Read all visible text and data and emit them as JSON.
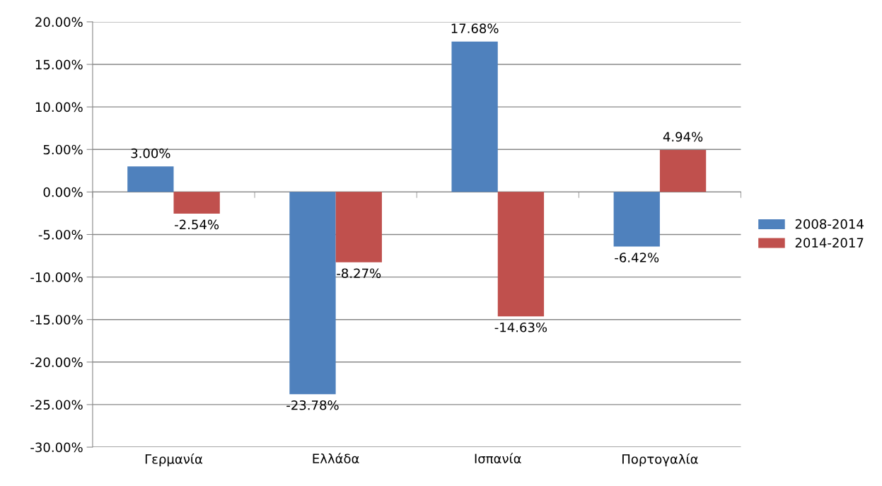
{
  "chart_data": {
    "type": "bar",
    "categories": [
      "Γερμανία",
      "Ελλάδα",
      "Ισπανία",
      "Πορτογαλία"
    ],
    "series": [
      {
        "name": "2008-2014",
        "color": "#4f81bd",
        "values": [
          3.0,
          -23.78,
          17.68,
          -6.42
        ],
        "value_labels": [
          "3.00%",
          "-23.78%",
          "17.68%",
          "-6.42%"
        ]
      },
      {
        "name": "2014-2017",
        "color": "#c0504d",
        "values": [
          -2.54,
          -8.27,
          -14.63,
          4.94
        ],
        "value_labels": [
          "-2.54%",
          "-8.27%",
          "-14.63%",
          "4.94%"
        ]
      }
    ],
    "ylim": [
      -30,
      20
    ],
    "yticks": [
      {
        "value": -30,
        "label": "-30.00%"
      },
      {
        "value": -25,
        "label": "-25.00%"
      },
      {
        "value": -20,
        "label": "-20.00%"
      },
      {
        "value": -15,
        "label": "-15.00%"
      },
      {
        "value": -10,
        "label": "-10.00%"
      },
      {
        "value": -5,
        "label": "-5.00%"
      },
      {
        "value": 0,
        "label": "0.00%"
      },
      {
        "value": 5,
        "label": "5.00%"
      },
      {
        "value": 10,
        "label": "10.00%"
      },
      {
        "value": 15,
        "label": "15.00%"
      },
      {
        "value": 20,
        "label": "20.00%"
      }
    ],
    "grid": "y",
    "legend": "right"
  }
}
